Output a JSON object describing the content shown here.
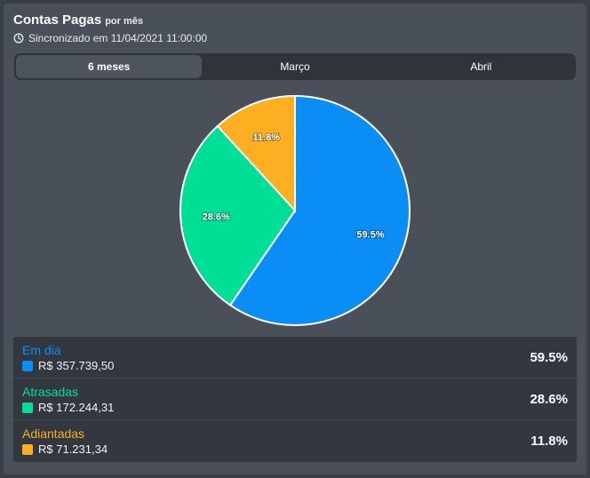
{
  "header": {
    "title": "Contas Pagas",
    "subtitle": "por mês",
    "sync_text": "Sincronizado em 11/04/2021 11:00:00"
  },
  "tabs": [
    {
      "label": "6 meses",
      "active": true
    },
    {
      "label": "Março",
      "active": false
    },
    {
      "label": "Abril",
      "active": false
    }
  ],
  "chart_data": {
    "type": "pie",
    "categories": [
      "Em dia",
      "Atrasadas",
      "Adiantadas"
    ],
    "values": [
      59.5,
      28.6,
      11.8
    ],
    "labels": [
      "59.5%",
      "28.6%",
      "11.8%"
    ],
    "colors": [
      "#0a8ef5",
      "#00df95",
      "#fdaf22"
    ]
  },
  "legend": [
    {
      "name": "Em dia",
      "amount": "R$ 357.739,50",
      "percent": "59.5%",
      "color": "#0a8ef5"
    },
    {
      "name": "Atrasadas",
      "amount": "R$ 172.244,31",
      "percent": "28.6%",
      "color": "#00df95"
    },
    {
      "name": "Adiantadas",
      "amount": "R$ 71.231,34",
      "percent": "11.8%",
      "color": "#fdaf22"
    }
  ]
}
